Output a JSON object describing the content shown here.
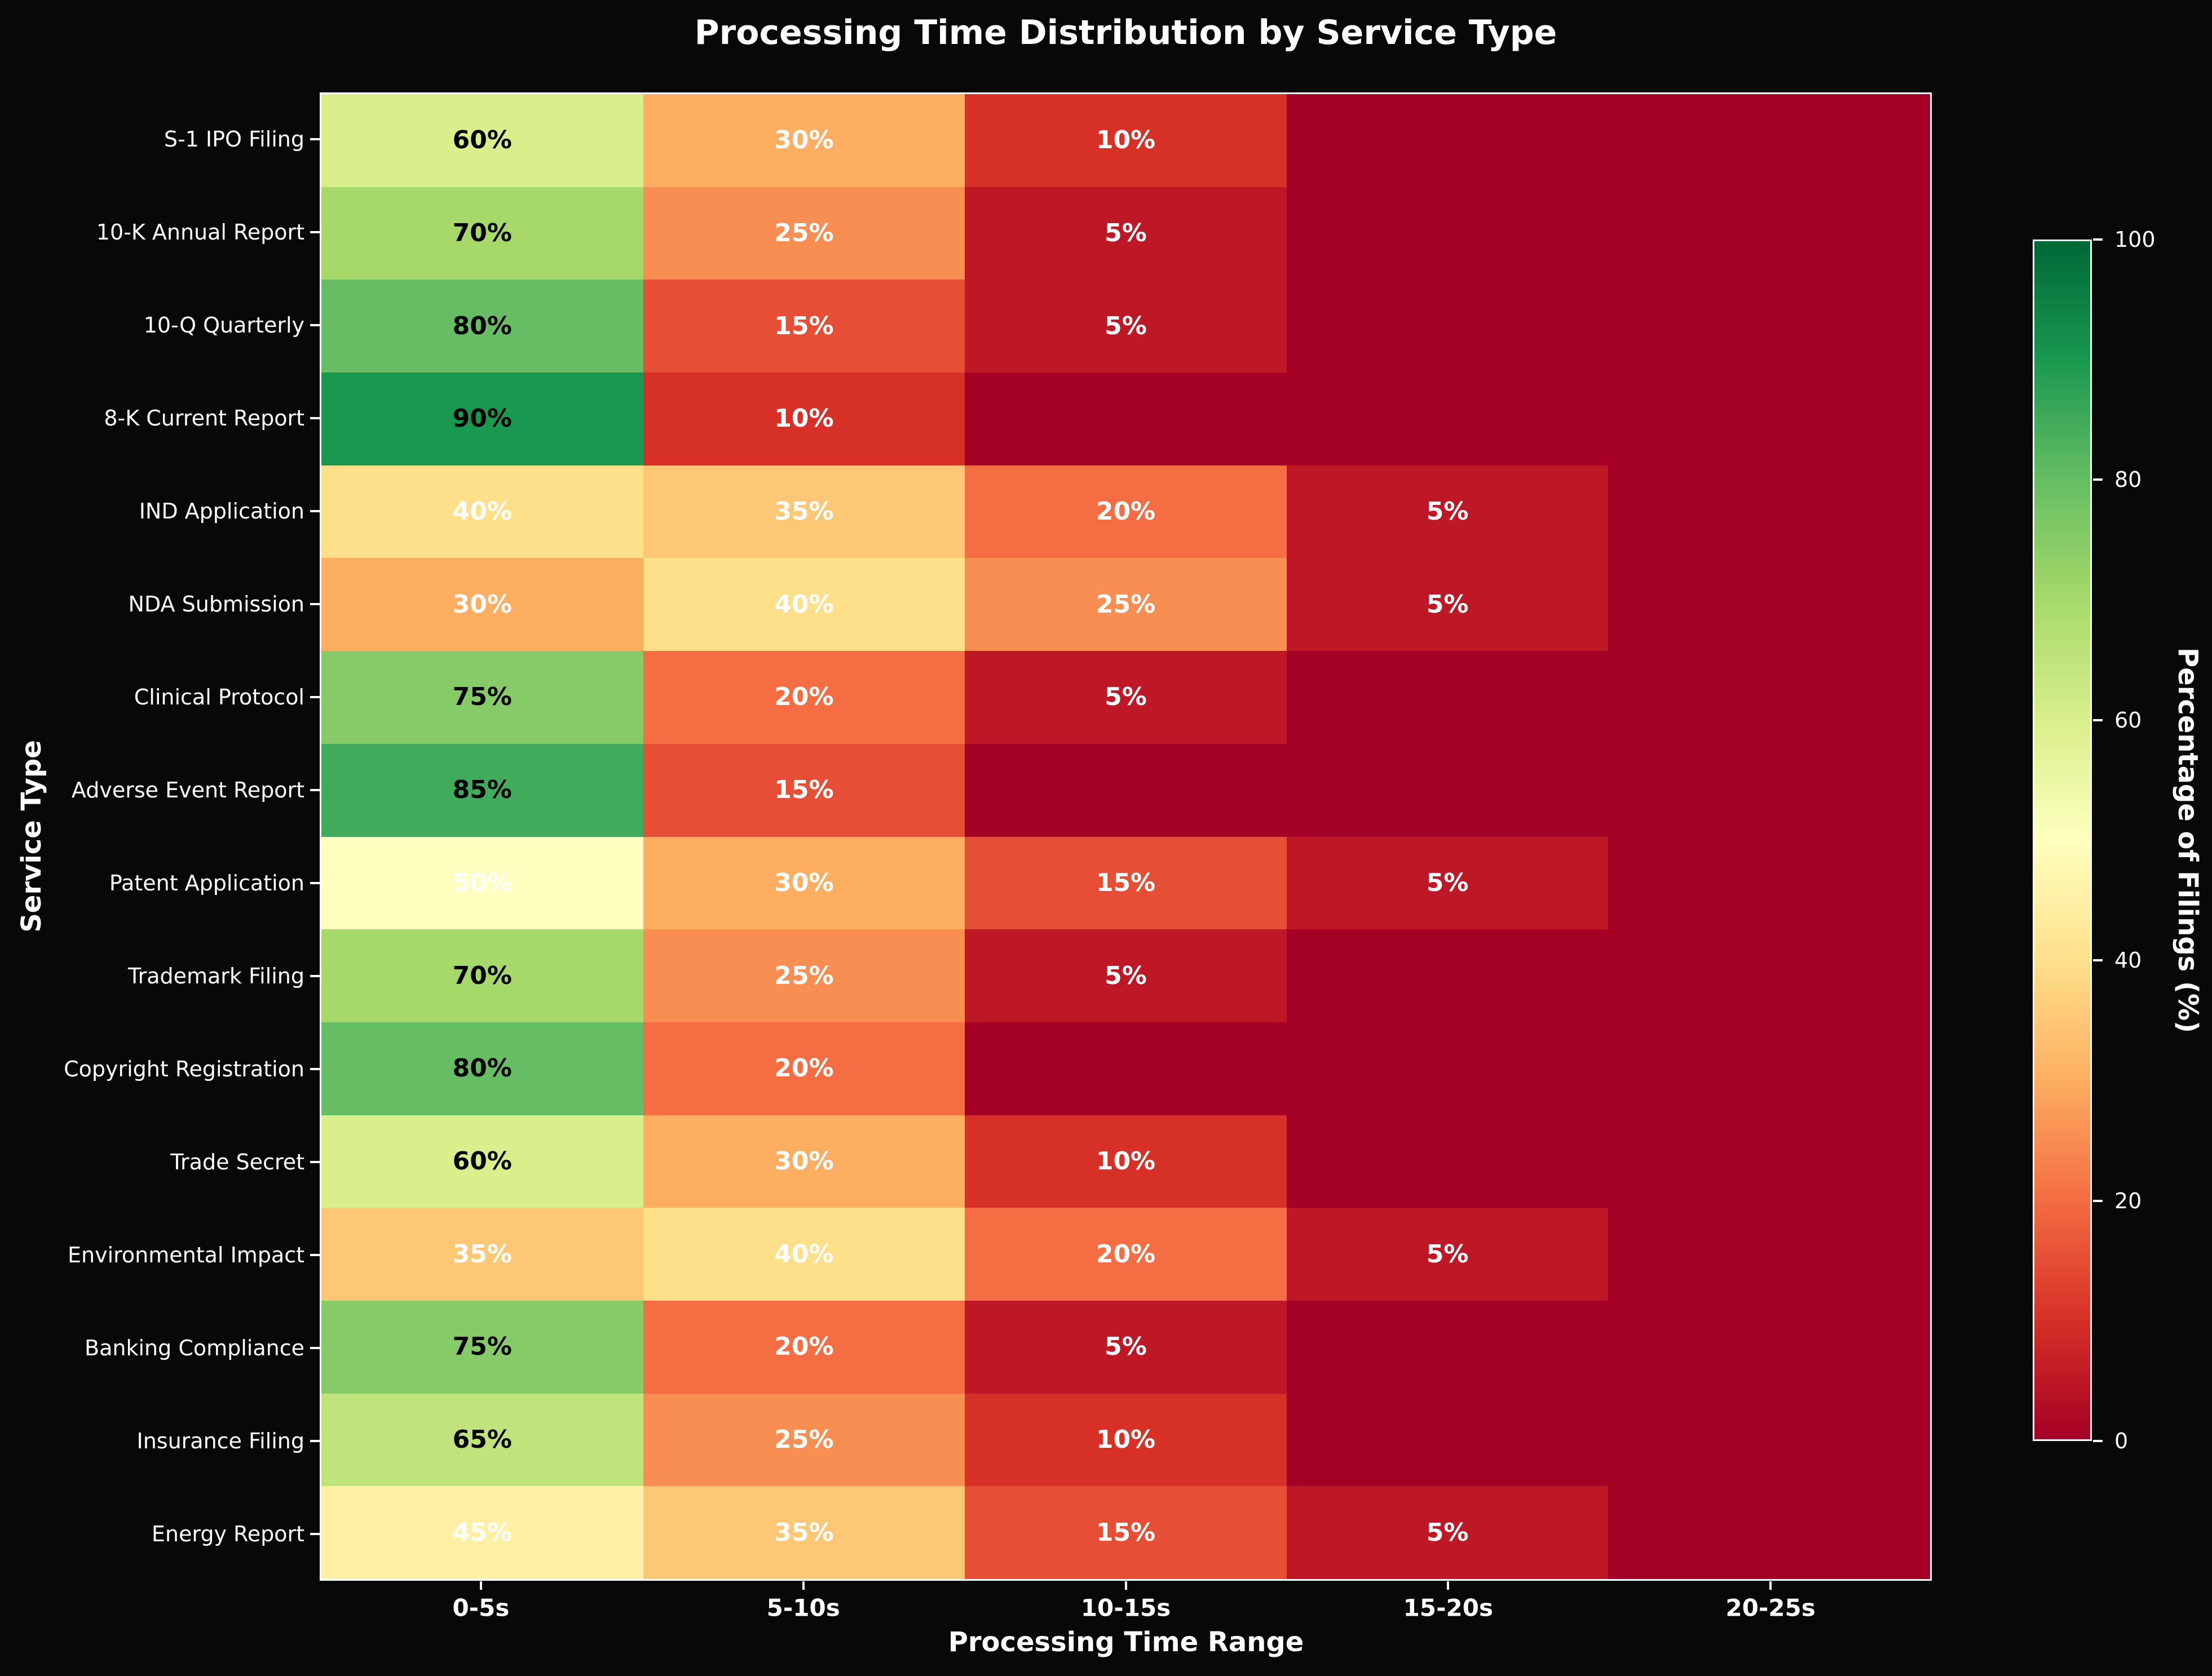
{
  "figure": {
    "background_color": "#080808",
    "text_color": "#ffffff"
  },
  "chart_data": {
    "type": "heatmap",
    "title": "Processing Time Distribution by Service Type",
    "xlabel": "Processing Time Range",
    "ylabel": "Service Type",
    "x_categories": [
      "0-5s",
      "5-10s",
      "10-15s",
      "15-20s",
      "20-25s"
    ],
    "y_categories": [
      "S-1 IPO Filing",
      "10-K Annual Report",
      "10-Q Quarterly",
      "8-K Current Report",
      "IND Application",
      "NDA Submission",
      "Clinical Protocol",
      "Adverse Event Report",
      "Patent Application",
      "Trademark Filing",
      "Copyright Registration",
      "Trade Secret",
      "Environmental Impact",
      "Banking Compliance",
      "Insurance Filing",
      "Energy Report"
    ],
    "values": [
      [
        60,
        30,
        10,
        0,
        0
      ],
      [
        70,
        25,
        5,
        0,
        0
      ],
      [
        80,
        15,
        5,
        0,
        0
      ],
      [
        90,
        10,
        0,
        0,
        0
      ],
      [
        40,
        35,
        20,
        5,
        0
      ],
      [
        30,
        40,
        25,
        5,
        0
      ],
      [
        75,
        20,
        5,
        0,
        0
      ],
      [
        85,
        15,
        0,
        0,
        0
      ],
      [
        50,
        30,
        15,
        5,
        0
      ],
      [
        70,
        25,
        5,
        0,
        0
      ],
      [
        80,
        20,
        0,
        0,
        0
      ],
      [
        60,
        30,
        10,
        0,
        0
      ],
      [
        35,
        40,
        20,
        5,
        0
      ],
      [
        75,
        20,
        5,
        0,
        0
      ],
      [
        65,
        25,
        10,
        0,
        0
      ],
      [
        45,
        35,
        15,
        5,
        0
      ]
    ],
    "vmin": 0,
    "vmax": 100,
    "annotation_format": "{v}%",
    "annotation_hide_zero": true,
    "annotation_text_threshold": 50,
    "annotation_text_color_high": "#000000",
    "annotation_text_color_low": "#ffffff",
    "grid": false,
    "colormap": {
      "name": "RdYlGn",
      "stops": [
        {
          "value": 0,
          "color": "#a50026"
        },
        {
          "value": 10,
          "color": "#d73027"
        },
        {
          "value": 20,
          "color": "#f46d43"
        },
        {
          "value": 30,
          "color": "#fdae61"
        },
        {
          "value": 40,
          "color": "#fee08b"
        },
        {
          "value": 50,
          "color": "#ffffbf"
        },
        {
          "value": 60,
          "color": "#d9ef8b"
        },
        {
          "value": 70,
          "color": "#a6d96a"
        },
        {
          "value": 80,
          "color": "#66bd63"
        },
        {
          "value": 90,
          "color": "#1a9850"
        },
        {
          "value": 100,
          "color": "#006837"
        }
      ]
    },
    "colorbar": {
      "label": "Percentage of Filings (%)",
      "ticks": [
        0,
        20,
        40,
        60,
        80,
        100
      ],
      "min": 0,
      "max": 100,
      "position": "right"
    }
  }
}
